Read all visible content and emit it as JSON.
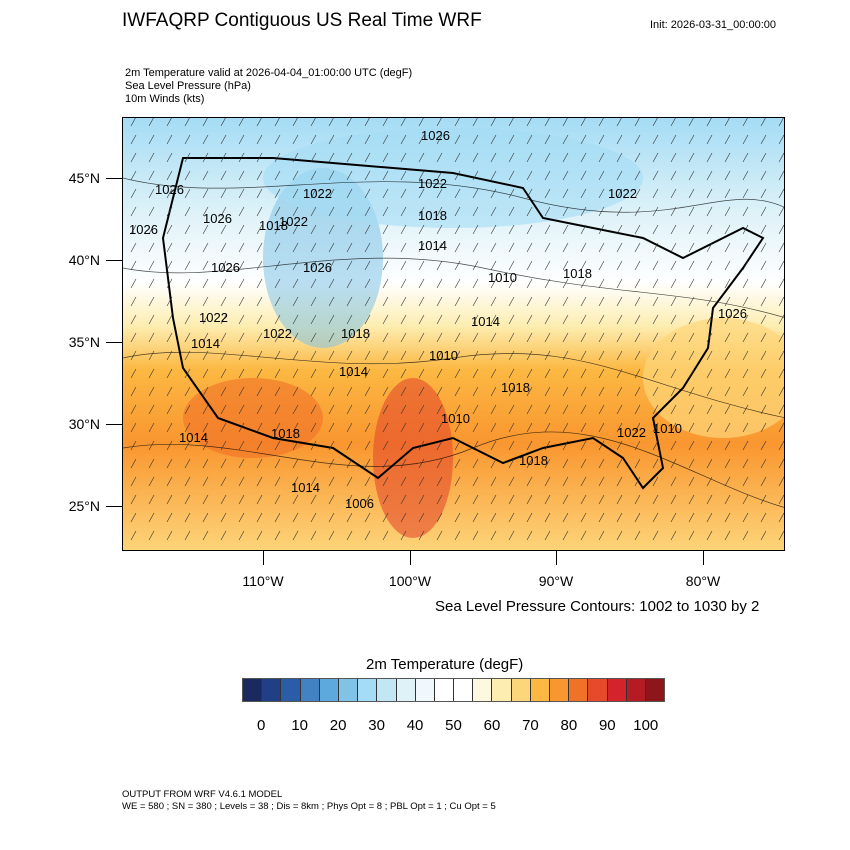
{
  "header": {
    "title": "IWFAQRP Contiguous US Real Time WRF",
    "init": "Init: 2026-03-31_00:00:00",
    "subtitles": [
      "2m Temperature valid at 2026-04-04_01:00:00 UTC   (degF)",
      "Sea Level Pressure   (hPa)",
      "10m Winds   (kts)"
    ]
  },
  "map": {
    "lat_labels": [
      "45°N",
      "40°N",
      "35°N",
      "30°N",
      "25°N"
    ],
    "lon_labels": [
      "110°W",
      "100°W",
      "90°W",
      "80°W"
    ],
    "isobar_labels": [
      "1026",
      "1026",
      "1022",
      "1022",
      "1022",
      "1026",
      "1022",
      "1018",
      "1014",
      "1026",
      "1018",
      "1026",
      "1022",
      "1026",
      "1010",
      "1018",
      "1022",
      "1018",
      "1014",
      "1010",
      "1014",
      "1018",
      "1010",
      "1014",
      "1022",
      "1018",
      "1014",
      "1018",
      "1006",
      "1014",
      "1026",
      "1010"
    ]
  },
  "contour_info": "Sea Level Pressure Contours: 1002 to 1030 by 2",
  "colorbar": {
    "title": "2m Temperature  (degF)",
    "colors": [
      "#1b2a5e",
      "#213f87",
      "#2a5ca8",
      "#4281c2",
      "#5ea9db",
      "#80c3e6",
      "#a4dcf5",
      "#c3e6f5",
      "#def2f8",
      "#f0f8fb",
      "#ffffff",
      "#ffffff",
      "#fff8e1",
      "#fdedb0",
      "#fdd57a",
      "#fcb843",
      "#f9962f",
      "#f07228",
      "#e54b2b",
      "#d4232a",
      "#b41b22",
      "#8e1519"
    ],
    "labels": [
      "0",
      "10",
      "20",
      "30",
      "40",
      "50",
      "60",
      "70",
      "80",
      "90",
      "100"
    ]
  },
  "footer": {
    "line1": "OUTPUT FROM WRF V4.6.1 MODEL",
    "line2": "WE = 580 ; SN = 380 ; Levels = 38 ; Dis = 8km ; Phys Opt = 8 ; PBL Opt = 1 ; Cu Opt = 5"
  }
}
